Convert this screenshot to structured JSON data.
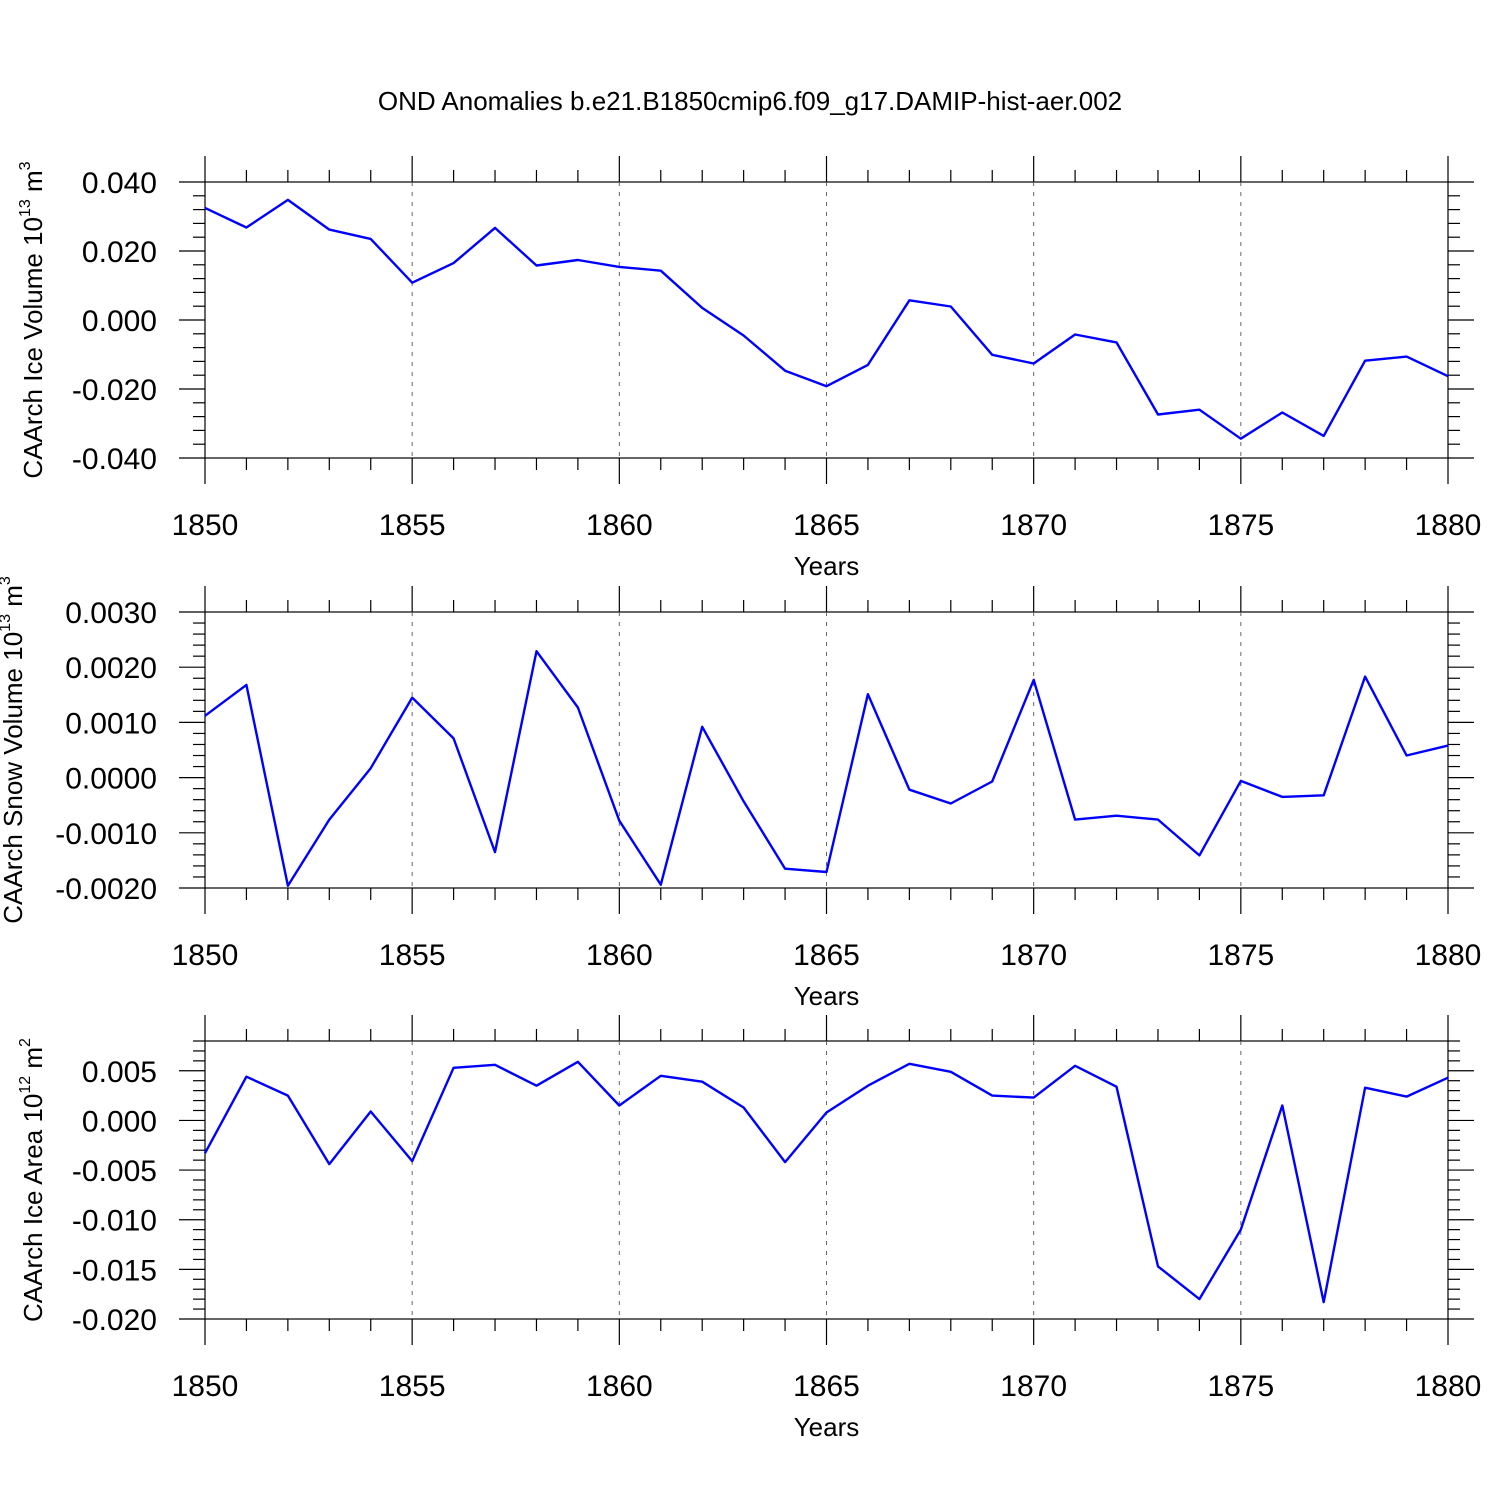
{
  "chart_data": [
    {
      "type": "line",
      "title": "OND Anomalies b.e21.B1850cmip6.f09_g17.DAMIP-hist-aer.002",
      "xlabel": "Years",
      "ylabel": {
        "main": "CAArch Ice Volume 10",
        "exp": "13",
        "unit": " m",
        "unit_exp": "3"
      },
      "xlim": [
        1850,
        1880
      ],
      "ylim": [
        -0.04,
        0.04
      ],
      "x_ticks": [
        "1850",
        "1855",
        "1860",
        "1865",
        "1870",
        "1875",
        "1880"
      ],
      "y_ticks": [
        {
          "v": -0.04,
          "label": "-0.040"
        },
        {
          "v": -0.02,
          "label": "-0.020"
        },
        {
          "v": 0.0,
          "label": "0.000"
        },
        {
          "v": 0.02,
          "label": "0.020"
        },
        {
          "v": 0.04,
          "label": "0.040"
        }
      ],
      "x": [
        1850,
        1851,
        1852,
        1853,
        1854,
        1855,
        1856,
        1857,
        1858,
        1859,
        1860,
        1861,
        1862,
        1863,
        1864,
        1865,
        1866,
        1867,
        1868,
        1869,
        1870,
        1871,
        1872,
        1873,
        1874,
        1875,
        1876,
        1877,
        1878,
        1879,
        1880
      ],
      "values": [
        0.0325,
        0.0268,
        0.0348,
        0.0262,
        0.0235,
        0.0108,
        0.0165,
        0.0267,
        0.0158,
        0.0174,
        0.0154,
        0.0143,
        0.0035,
        -0.0045,
        -0.0147,
        -0.0192,
        -0.013,
        0.0057,
        0.0039,
        -0.0101,
        -0.0126,
        -0.0042,
        -0.0065,
        -0.0274,
        -0.026,
        -0.0344,
        -0.0268,
        -0.0336,
        -0.0118,
        -0.0106,
        -0.0163
      ]
    },
    {
      "type": "line",
      "title": "",
      "xlabel": "Years",
      "ylabel": {
        "main": "CAArch Snow Volume 10",
        "exp": "13",
        "unit": " m",
        "unit_exp": "3"
      },
      "xlim": [
        1850,
        1880
      ],
      "ylim": [
        -0.002,
        0.003
      ],
      "x_ticks": [
        "1850",
        "1855",
        "1860",
        "1865",
        "1870",
        "1875",
        "1880"
      ],
      "y_ticks": [
        {
          "v": -0.002,
          "label": "-0.0020"
        },
        {
          "v": -0.001,
          "label": "-0.0010"
        },
        {
          "v": 0.0,
          "label": "0.0000"
        },
        {
          "v": 0.001,
          "label": "0.0010"
        },
        {
          "v": 0.002,
          "label": "0.0020"
        },
        {
          "v": 0.003,
          "label": "0.0030"
        }
      ],
      "x": [
        1850,
        1851,
        1852,
        1853,
        1854,
        1855,
        1856,
        1857,
        1858,
        1859,
        1860,
        1861,
        1862,
        1863,
        1864,
        1865,
        1866,
        1867,
        1868,
        1869,
        1870,
        1871,
        1872,
        1873,
        1874,
        1875,
        1876,
        1877,
        1878,
        1879,
        1880
      ],
      "values": [
        0.00112,
        0.00168,
        -0.00196,
        -0.00076,
        0.00017,
        0.00145,
        0.00071,
        -0.00135,
        0.00229,
        0.00127,
        -0.00078,
        -0.00194,
        0.00092,
        -0.00043,
        -0.00165,
        -0.00171,
        0.00151,
        -0.00022,
        -0.00047,
        -7e-05,
        0.00177,
        -0.00076,
        -0.00069,
        -0.00076,
        -0.00141,
        -6e-05,
        -0.00035,
        -0.00032,
        0.00183,
        0.0004,
        0.00058
      ]
    },
    {
      "type": "line",
      "title": "",
      "xlabel": "Years",
      "ylabel": {
        "main": "CAArch Ice Area 10",
        "exp": "12",
        "unit": " m",
        "unit_exp": "2"
      },
      "xlim": [
        1850,
        1880
      ],
      "ylim": [
        -0.02,
        0.008
      ],
      "x_ticks": [
        "1850",
        "1855",
        "1860",
        "1865",
        "1870",
        "1875",
        "1880"
      ],
      "y_ticks": [
        {
          "v": -0.02,
          "label": "-0.020"
        },
        {
          "v": -0.015,
          "label": "-0.015"
        },
        {
          "v": -0.01,
          "label": "-0.010"
        },
        {
          "v": -0.005,
          "label": "-0.005"
        },
        {
          "v": 0.0,
          "label": "0.000"
        },
        {
          "v": 0.005,
          "label": "0.005"
        }
      ],
      "x": [
        1850,
        1851,
        1852,
        1853,
        1854,
        1855,
        1856,
        1857,
        1858,
        1859,
        1860,
        1861,
        1862,
        1863,
        1864,
        1865,
        1866,
        1867,
        1868,
        1869,
        1870,
        1871,
        1872,
        1873,
        1874,
        1875,
        1876,
        1877,
        1878,
        1879,
        1880
      ],
      "values": [
        -0.0033,
        0.0044,
        0.0025,
        -0.0044,
        0.0009,
        -0.0041,
        0.0053,
        0.0056,
        0.0035,
        0.0059,
        0.0015,
        0.0045,
        0.0039,
        0.0013,
        -0.0042,
        0.0008,
        0.0035,
        0.0057,
        0.0049,
        0.0025,
        0.0023,
        0.0055,
        0.0034,
        -0.0147,
        -0.018,
        -0.011,
        0.0015,
        -0.0183,
        0.0033,
        0.0024,
        0.0043
      ]
    }
  ]
}
